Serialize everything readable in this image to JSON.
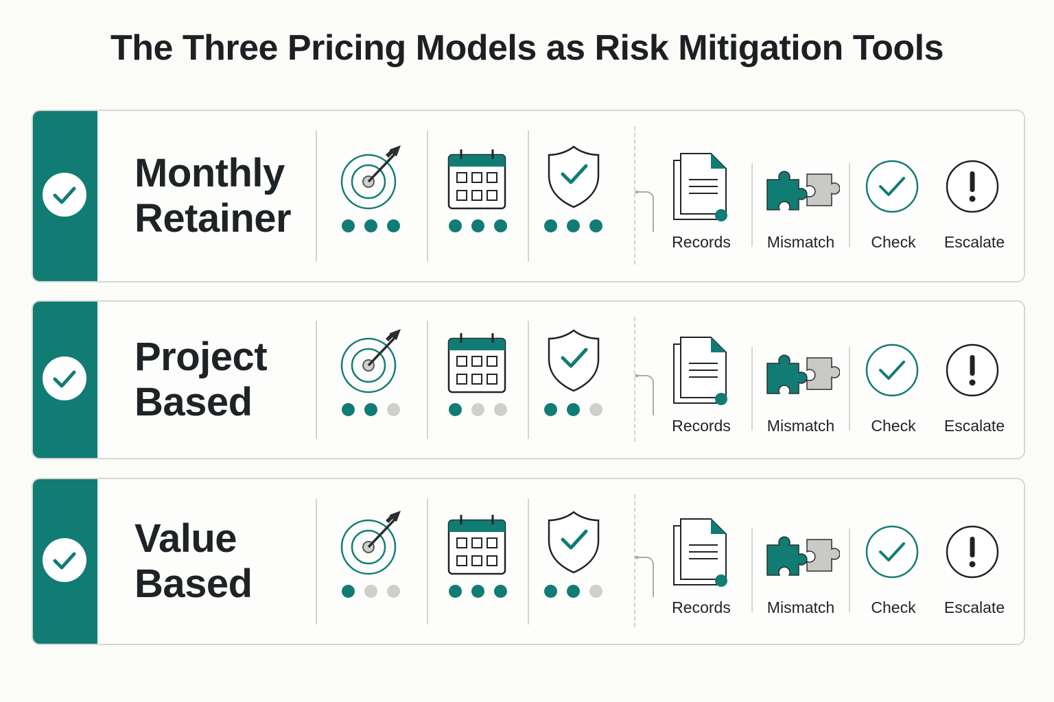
{
  "title": "The Three Pricing Models as Risk Mitigation Tools",
  "colors": {
    "accent": "#117c74",
    "inactive": "#cfcfcc",
    "ink": "#1e2326",
    "gray_piece": "#c9c9c6"
  },
  "metric_icons": [
    "target-icon",
    "calendar-icon",
    "shield-check-icon"
  ],
  "step_icons": [
    "records-icon",
    "mismatch-puzzle-icon",
    "check-circle-icon",
    "escalate-icon"
  ],
  "models": [
    {
      "name_line1": "Monthly",
      "name_line2": "Retainer",
      "ratings": [
        3,
        3,
        3
      ],
      "steps": [
        "Records",
        "Mismatch",
        "Check",
        "Escalate"
      ]
    },
    {
      "name_line1": "Project",
      "name_line2": "Based",
      "ratings": [
        2,
        1,
        2
      ],
      "steps": [
        "Records",
        "Mismatch",
        "Check",
        "Escalate"
      ]
    },
    {
      "name_line1": "Value",
      "name_line2": "Based",
      "ratings": [
        1,
        3,
        2
      ],
      "steps": [
        "Records",
        "Mismatch",
        "Check",
        "Escalate"
      ]
    }
  ]
}
